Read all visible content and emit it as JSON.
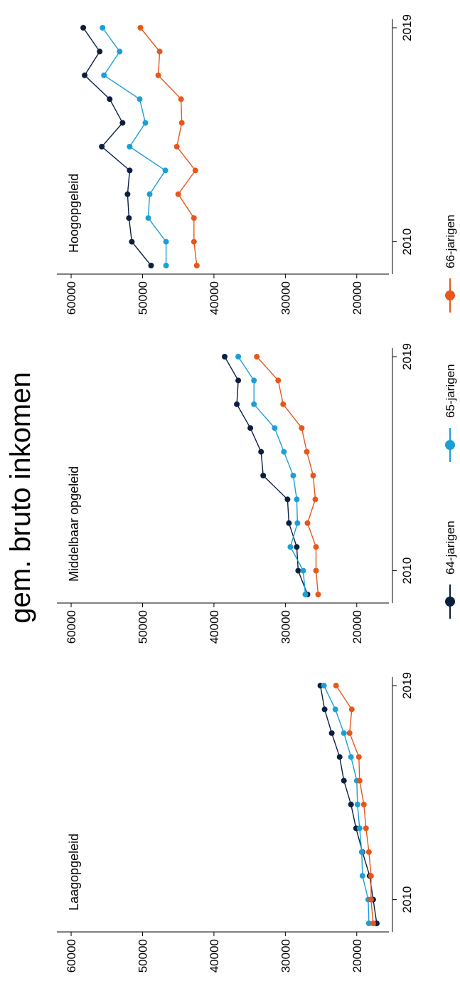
{
  "chart_data": {
    "type": "line",
    "title": "gem. bruto inkomen",
    "x": [
      2009,
      2010,
      2011,
      2012,
      2013,
      2014,
      2015,
      2016,
      2017,
      2018,
      2019
    ],
    "x_ticks": [
      "2010",
      "2019"
    ],
    "y_ticks": [
      "60000",
      "50000",
      "40000",
      "30000",
      "20000"
    ],
    "ylim": [
      15000,
      61000
    ],
    "xlim": [
      2009,
      2019
    ],
    "legend": {
      "position": "bottom",
      "entries": [
        "64-jarigen",
        "65-jarigen",
        "66-jarigen"
      ]
    },
    "colors": {
      "64-jarigen": "#0b1f3f",
      "65-jarigen": "#1a9fd6",
      "66-jarigen": "#e8561b"
    },
    "panels": [
      {
        "title": "Laagopgeleid",
        "series": [
          {
            "name": "64-jarigen",
            "values": [
              17200,
              17700,
              18200,
              19200,
              20100,
              20800,
              21800,
              22400,
              23500,
              24500,
              25100
            ]
          },
          {
            "name": "65-jarigen",
            "values": [
              18300,
              18400,
              19200,
              19300,
              19600,
              19900,
              20000,
              20800,
              21800,
              23000,
              24600
            ]
          },
          {
            "name": "66-jarigen",
            "values": [
              17700,
              18000,
              18000,
              18300,
              18700,
              19000,
              19600,
              19700,
              21000,
              20700,
              22900
            ]
          }
        ]
      },
      {
        "title": "Middelbaar opgeleid",
        "series": [
          {
            "name": "64-jarigen",
            "values": [
              26900,
              28200,
              28400,
              29500,
              29700,
              33100,
              33400,
              34900,
              36800,
              36600,
              38500
            ]
          },
          {
            "name": "65-jarigen",
            "values": [
              27200,
              27500,
              29300,
              28300,
              28400,
              28900,
              30200,
              31500,
              34400,
              34400,
              36600
            ]
          },
          {
            "name": "66-jarigen",
            "values": [
              25400,
              25700,
              25700,
              26900,
              25800,
              26100,
              27000,
              27700,
              30300,
              31000,
              34000
            ]
          }
        ]
      },
      {
        "title": "Hoogopgeleid",
        "series": [
          {
            "name": "64-jarigen",
            "values": [
              48800,
              51500,
              51900,
              52100,
              51800,
              55700,
              52800,
              54600,
              58100,
              56000,
              58300
            ]
          },
          {
            "name": "65-jarigen",
            "values": [
              46700,
              46700,
              49200,
              49000,
              46800,
              51800,
              49600,
              50400,
              55400,
              53200,
              55600
            ]
          },
          {
            "name": "66-jarigen",
            "values": [
              42400,
              42800,
              42800,
              45000,
              42600,
              45200,
              44500,
              44600,
              47800,
              47600,
              50300
            ]
          }
        ]
      }
    ]
  }
}
